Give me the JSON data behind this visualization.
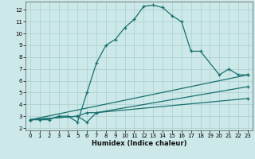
{
  "xlabel": "Humidex (Indice chaleur)",
  "bg_color": "#cce8e8",
  "grid_color": "#aacece",
  "line_color": "#1a7070",
  "marker": "+",
  "xlim": [
    -0.5,
    23.5
  ],
  "ylim": [
    1.8,
    12.7
  ],
  "xticks": [
    0,
    1,
    2,
    3,
    4,
    5,
    6,
    7,
    8,
    9,
    10,
    11,
    12,
    13,
    14,
    15,
    16,
    17,
    18,
    19,
    20,
    21,
    22,
    23
  ],
  "yticks": [
    2,
    3,
    4,
    5,
    6,
    7,
    8,
    9,
    10,
    11,
    12
  ],
  "line1_x": [
    0,
    1,
    2,
    3,
    4,
    5,
    6,
    7,
    8,
    9,
    10,
    11,
    12,
    13,
    14,
    15,
    16,
    17,
    18,
    20,
    21,
    22,
    23
  ],
  "line1_y": [
    2.7,
    2.7,
    2.7,
    3.0,
    3.0,
    2.5,
    5.0,
    7.5,
    9.0,
    9.5,
    10.5,
    11.2,
    12.3,
    12.4,
    12.2,
    11.5,
    11.0,
    8.5,
    8.5,
    6.5,
    7.0,
    6.5,
    6.5
  ],
  "line2_x": [
    0,
    23
  ],
  "line2_y": [
    2.7,
    6.5
  ],
  "line3_x": [
    0,
    5,
    6,
    7,
    23
  ],
  "line3_y": [
    2.7,
    3.0,
    3.3,
    3.3,
    5.5
  ],
  "line4_x": [
    0,
    5,
    6,
    7,
    23
  ],
  "line4_y": [
    2.7,
    3.0,
    2.5,
    3.3,
    4.5
  ]
}
